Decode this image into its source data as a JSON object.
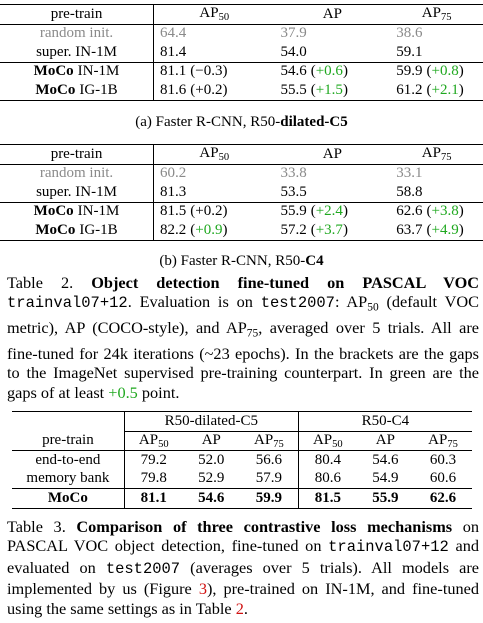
{
  "table_a": {
    "header": [
      [
        {
          "t": "pre-train"
        }
      ],
      [
        {
          "t": "AP"
        },
        {
          "t": "50",
          "s": "sub"
        }
      ],
      [
        {
          "t": "AP"
        }
      ],
      [
        {
          "t": "AP"
        },
        {
          "t": "75",
          "s": "sub"
        }
      ]
    ],
    "rows": [
      [
        [
          {
            "t": "random init.",
            "s": "gray"
          }
        ],
        [
          {
            "t": "64.4",
            "s": "gray"
          }
        ],
        [
          {
            "t": "37.9",
            "s": "gray"
          }
        ],
        [
          {
            "t": "38.6",
            "s": "gray"
          }
        ]
      ],
      [
        [
          {
            "t": "super. IN-1M"
          }
        ],
        [
          {
            "t": "81.4"
          }
        ],
        [
          {
            "t": "54.0"
          }
        ],
        [
          {
            "t": "59.1"
          }
        ]
      ],
      [
        [
          {
            "t": "MoCo",
            "s": "bold"
          },
          {
            "t": "IN-1M"
          }
        ],
        [
          {
            "t": "81.1"
          },
          {
            "t": "(−0.3)"
          }
        ],
        [
          {
            "t": "54.6"
          },
          {
            "t": "("
          },
          {
            "t": "+0.6",
            "s": "green"
          },
          {
            "t": ")"
          }
        ],
        [
          {
            "t": "59.9"
          },
          {
            "t": "("
          },
          {
            "t": "+0.8",
            "s": "green"
          },
          {
            "t": ")"
          }
        ]
      ],
      [
        [
          {
            "t": "MoCo",
            "s": "bold"
          },
          {
            "t": "IG-1B"
          }
        ],
        [
          {
            "t": "81.6"
          },
          {
            "t": "(+0.2)"
          }
        ],
        [
          {
            "t": "55.5"
          },
          {
            "t": "("
          },
          {
            "t": "+1.5",
            "s": "green"
          },
          {
            "t": ")"
          }
        ],
        [
          {
            "t": "61.2"
          },
          {
            "t": "("
          },
          {
            "t": "+2.1",
            "s": "green"
          },
          {
            "t": ")"
          }
        ]
      ]
    ],
    "caption": [
      {
        "t": "(a) Faster R-CNN, R50-"
      },
      {
        "t": "dilated-C5",
        "s": "bold"
      }
    ]
  },
  "table_b": {
    "header": [
      [
        {
          "t": "pre-train"
        }
      ],
      [
        {
          "t": "AP"
        },
        {
          "t": "50",
          "s": "sub"
        }
      ],
      [
        {
          "t": "AP"
        }
      ],
      [
        {
          "t": "AP"
        },
        {
          "t": "75",
          "s": "sub"
        }
      ]
    ],
    "rows": [
      [
        [
          {
            "t": "random init.",
            "s": "gray"
          }
        ],
        [
          {
            "t": "60.2",
            "s": "gray"
          }
        ],
        [
          {
            "t": "33.8",
            "s": "gray"
          }
        ],
        [
          {
            "t": "33.1",
            "s": "gray"
          }
        ]
      ],
      [
        [
          {
            "t": "super. IN-1M"
          }
        ],
        [
          {
            "t": "81.3"
          }
        ],
        [
          {
            "t": "53.5"
          }
        ],
        [
          {
            "t": "58.8"
          }
        ]
      ],
      [
        [
          {
            "t": "MoCo",
            "s": "bold"
          },
          {
            "t": "IN-1M"
          }
        ],
        [
          {
            "t": "81.5"
          },
          {
            "t": "(+0.2)"
          }
        ],
        [
          {
            "t": "55.9"
          },
          {
            "t": "("
          },
          {
            "t": "+2.4",
            "s": "green"
          },
          {
            "t": ")"
          }
        ],
        [
          {
            "t": "62.6"
          },
          {
            "t": "("
          },
          {
            "t": "+3.8",
            "s": "green"
          },
          {
            "t": ")"
          }
        ]
      ],
      [
        [
          {
            "t": "MoCo",
            "s": "bold"
          },
          {
            "t": "IG-1B"
          }
        ],
        [
          {
            "t": "82.2"
          },
          {
            "t": "("
          },
          {
            "t": "+0.9",
            "s": "green"
          },
          {
            "t": ")"
          }
        ],
        [
          {
            "t": "57.2"
          },
          {
            "t": "("
          },
          {
            "t": "+3.7",
            "s": "green"
          },
          {
            "t": ")"
          }
        ],
        [
          {
            "t": "63.7"
          },
          {
            "t": "("
          },
          {
            "t": "+4.9",
            "s": "green"
          },
          {
            "t": ")"
          }
        ]
      ]
    ],
    "caption": [
      {
        "t": "(b) Faster R-CNN, R50-"
      },
      {
        "t": "C4",
        "s": "bold"
      }
    ]
  },
  "table2_caption": [
    {
      "t": "Table 2. "
    },
    {
      "t": "Object detection fine-tuned on PASCAL VOC",
      "s": "bold"
    },
    {
      "t": " "
    },
    {
      "t": "trainval07+12",
      "s": "mono"
    },
    {
      "t": ". Evaluation is on "
    },
    {
      "t": "test2007",
      "s": "mono"
    },
    {
      "t": ": AP"
    },
    {
      "t": "50",
      "s": "sub"
    },
    {
      "t": " (default VOC metric), AP (COCO-style), and AP"
    },
    {
      "t": "75",
      "s": "sub"
    },
    {
      "t": ", averaged over 5 trials. All are fine-tuned for 24k iterations (~23 epochs). In the brackets are the gaps to the ImageNet supervised pre-training counterpart. In green are the gaps of at least "
    },
    {
      "t": "+0.5",
      "s": "green"
    },
    {
      "t": " point."
    }
  ],
  "table3": {
    "groups": [
      "R50-dilated-C5",
      "R50-C4"
    ],
    "header": [
      [
        {
          "t": "pre-train"
        }
      ],
      [
        {
          "t": "AP"
        },
        {
          "t": "50",
          "s": "sub"
        }
      ],
      [
        {
          "t": "AP"
        }
      ],
      [
        {
          "t": "AP"
        },
        {
          "t": "75",
          "s": "sub"
        }
      ],
      [
        {
          "t": "AP"
        },
        {
          "t": "50",
          "s": "sub"
        }
      ],
      [
        {
          "t": "AP"
        }
      ],
      [
        {
          "t": "AP"
        },
        {
          "t": "75",
          "s": "sub"
        }
      ]
    ],
    "rows": [
      [
        [
          {
            "t": "end-to-end"
          }
        ],
        [
          {
            "t": "79.2"
          }
        ],
        [
          {
            "t": "52.0"
          }
        ],
        [
          {
            "t": "56.6"
          }
        ],
        [
          {
            "t": "80.4"
          }
        ],
        [
          {
            "t": "54.6"
          }
        ],
        [
          {
            "t": "60.3"
          }
        ]
      ],
      [
        [
          {
            "t": "memory bank"
          }
        ],
        [
          {
            "t": "79.8"
          }
        ],
        [
          {
            "t": "52.9"
          }
        ],
        [
          {
            "t": "57.9"
          }
        ],
        [
          {
            "t": "80.6"
          }
        ],
        [
          {
            "t": "54.9"
          }
        ],
        [
          {
            "t": "60.6"
          }
        ]
      ],
      [
        [
          {
            "t": "MoCo",
            "s": "bold"
          }
        ],
        [
          {
            "t": "81.1",
            "s": "bold"
          }
        ],
        [
          {
            "t": "54.6",
            "s": "bold"
          }
        ],
        [
          {
            "t": "59.9",
            "s": "bold"
          }
        ],
        [
          {
            "t": "81.5",
            "s": "bold"
          }
        ],
        [
          {
            "t": "55.9",
            "s": "bold"
          }
        ],
        [
          {
            "t": "62.6",
            "s": "bold"
          }
        ]
      ]
    ]
  },
  "table3_caption": [
    {
      "t": "Table 3. "
    },
    {
      "t": "Comparison of three contrastive loss mechanisms",
      "s": "bold"
    },
    {
      "t": " on PASCAL VOC object detection, fine-tuned on "
    },
    {
      "t": "trainval07+12",
      "s": "mono"
    },
    {
      "t": " and evaluated on "
    },
    {
      "t": "test2007",
      "s": "mono"
    },
    {
      "t": " (averages over 5 trials). All models are implemented by us (Figure "
    },
    {
      "t": "3",
      "s": "red"
    },
    {
      "t": "), pre-trained on IN-1M, and fine-tuned using the same settings as in Table "
    },
    {
      "t": "2",
      "s": "red"
    },
    {
      "t": "."
    }
  ]
}
